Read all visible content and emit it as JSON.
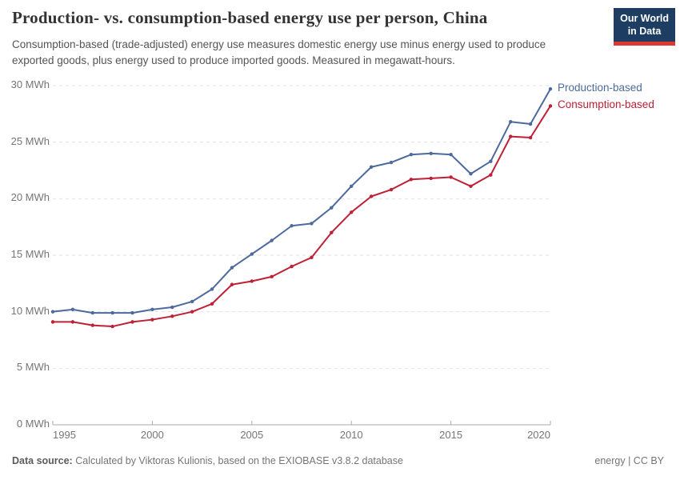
{
  "header": {
    "title": "Production- vs. consumption-based energy use per person, China",
    "subtitle": "Consumption-based (trade-adjusted) energy use measures domestic energy use minus energy used to produce exported goods, plus energy used to produce imported goods. Measured in megawatt-hours.",
    "logo": {
      "line1": "Our World",
      "line2": "in Data",
      "bg_color": "#1d3d63",
      "accent_color": "#dd3931"
    }
  },
  "chart_data": {
    "type": "line",
    "title": "Production- vs. consumption-based energy use per person, China",
    "xlabel": "",
    "ylabel": "MWh",
    "x": [
      1995,
      1996,
      1997,
      1998,
      1999,
      2000,
      2001,
      2002,
      2003,
      2004,
      2005,
      2006,
      2007,
      2008,
      2009,
      2010,
      2011,
      2012,
      2013,
      2014,
      2015,
      2016,
      2017,
      2018,
      2019,
      2020
    ],
    "series": [
      {
        "name": "Production-based",
        "color": "#4c6a9c",
        "values": [
          10.0,
          10.2,
          9.9,
          9.9,
          9.9,
          10.2,
          10.4,
          10.9,
          12.0,
          13.9,
          15.1,
          16.3,
          17.6,
          17.8,
          19.2,
          21.1,
          22.8,
          23.2,
          23.9,
          24.0,
          23.9,
          22.2,
          23.3,
          26.8,
          26.6,
          29.7
        ]
      },
      {
        "name": "Consumption-based",
        "color": "#be2036",
        "values": [
          9.1,
          9.1,
          8.8,
          8.7,
          9.1,
          9.3,
          9.6,
          10.0,
          10.7,
          12.4,
          12.7,
          13.1,
          14.0,
          14.8,
          17.0,
          18.8,
          20.2,
          20.8,
          21.7,
          21.8,
          21.9,
          21.1,
          22.1,
          25.5,
          25.4,
          28.2
        ]
      }
    ],
    "xlim": [
      1995,
      2020
    ],
    "ylim": [
      0,
      30
    ],
    "x_ticks": [
      1995,
      2000,
      2005,
      2010,
      2015,
      2020
    ],
    "y_ticks": [
      0,
      5,
      10,
      15,
      20,
      25,
      30
    ],
    "y_tick_format": "{v} MWh",
    "grid": "horizontal-dashed",
    "legend_position": "end-of-line-labels",
    "gridline_color": "#e2e2e2",
    "axis_color": "#ababab",
    "tick_text_color": "#757575"
  },
  "footer": {
    "source_label": "Data source:",
    "source_text": "Calculated by Viktoras Kulionis, based on the EXIOBASE v3.8.2 database",
    "rights": "energy | CC BY"
  }
}
